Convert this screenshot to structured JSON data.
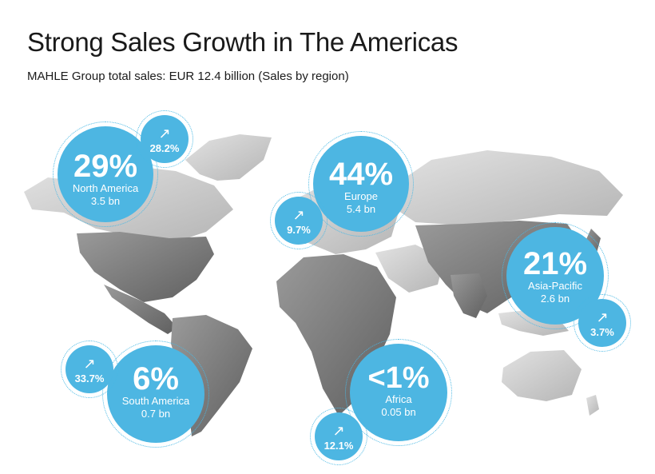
{
  "title": "Strong Sales Growth in The Americas",
  "subtitle": "MAHLE Group total sales: EUR 12.4 billion (Sales by region)",
  "colors": {
    "bubble": "#4db6e2",
    "map_dark": "#7a7a7a",
    "map_light": "#c9c9c9"
  },
  "icon": "arrow-up-right-icon",
  "chart_data": {
    "type": "map-bubble",
    "title": "Strong Sales Growth in The Americas",
    "subtitle": "MAHLE Group total sales: EUR 12.4 billion (Sales by region)",
    "total": "EUR 12.4 billion",
    "regions": [
      {
        "name": "North America",
        "share": "29%",
        "share_value": 29,
        "sales": "3.5 bn",
        "sales_value": 3.5,
        "growth": "28.2%",
        "growth_value": 28.2
      },
      {
        "name": "Europe",
        "share": "44%",
        "share_value": 44,
        "sales": "5.4 bn",
        "sales_value": 5.4,
        "growth": "9.7%",
        "growth_value": 9.7
      },
      {
        "name": "Asia-Pacific",
        "share": "21%",
        "share_value": 21,
        "sales": "2.6 bn",
        "sales_value": 2.6,
        "growth": "3.7%",
        "growth_value": 3.7
      },
      {
        "name": "South America",
        "share": "6%",
        "share_value": 6,
        "sales": "0.7 bn",
        "sales_value": 0.7,
        "growth": "33.7%",
        "growth_value": 33.7
      },
      {
        "name": "Africa",
        "share": "<1%",
        "share_value": 0.5,
        "sales": "0.05 bn",
        "sales_value": 0.05,
        "growth": "12.1%",
        "growth_value": 12.1
      }
    ]
  }
}
